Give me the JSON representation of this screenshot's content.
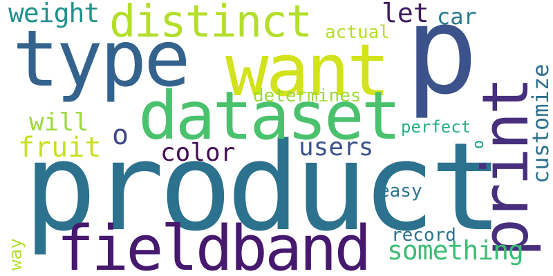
{
  "words": {
    "product": {
      "text": "product",
      "color": "#2c728e"
    },
    "p": {
      "text": "p",
      "color": "#3b528b"
    },
    "type": {
      "text": "type",
      "color": "#33638d"
    },
    "want": {
      "text": "want",
      "color": "#d2e21b"
    },
    "dataset": {
      "text": "dataset",
      "color": "#4ac16d"
    },
    "fieldband": {
      "text": "fieldband",
      "color": "#46186e"
    },
    "print": {
      "text": "print",
      "color": "#472f7d"
    },
    "distinct": {
      "text": "distinct",
      "color": "#b4de2c"
    },
    "weight": {
      "text": "weight",
      "color": "#21918c"
    },
    "let": {
      "text": "let",
      "color": "#3e1a5e"
    },
    "car": {
      "text": "car",
      "color": "#2a788e"
    },
    "actual": {
      "text": "actual",
      "color": "#b5de2b"
    },
    "customize": {
      "text": "customize",
      "color": "#2d708e"
    },
    "determines": {
      "text": "determines",
      "color": "#9bd93c"
    },
    "will": {
      "text": "will",
      "color": "#9bd93c"
    },
    "fruit": {
      "text": "fruit",
      "color": "#c8e020"
    },
    "o": {
      "text": "o",
      "color": "#3e4989"
    },
    "color": {
      "text": "color",
      "color": "#440d54"
    },
    "users": {
      "text": "users",
      "color": "#3b528b"
    },
    "perfect": {
      "text": "perfect",
      "color": "#28ae80"
    },
    "easy": {
      "text": "easy",
      "color": "#2c728e"
    },
    "record": {
      "text": "record",
      "color": "#2c728e"
    },
    "something": {
      "text": "something",
      "color": "#3dbc74"
    },
    "way": {
      "text": "way",
      "color": "#b4de2c"
    },
    "small_right": {
      "text": "o",
      "color": "#1fa187"
    }
  }
}
